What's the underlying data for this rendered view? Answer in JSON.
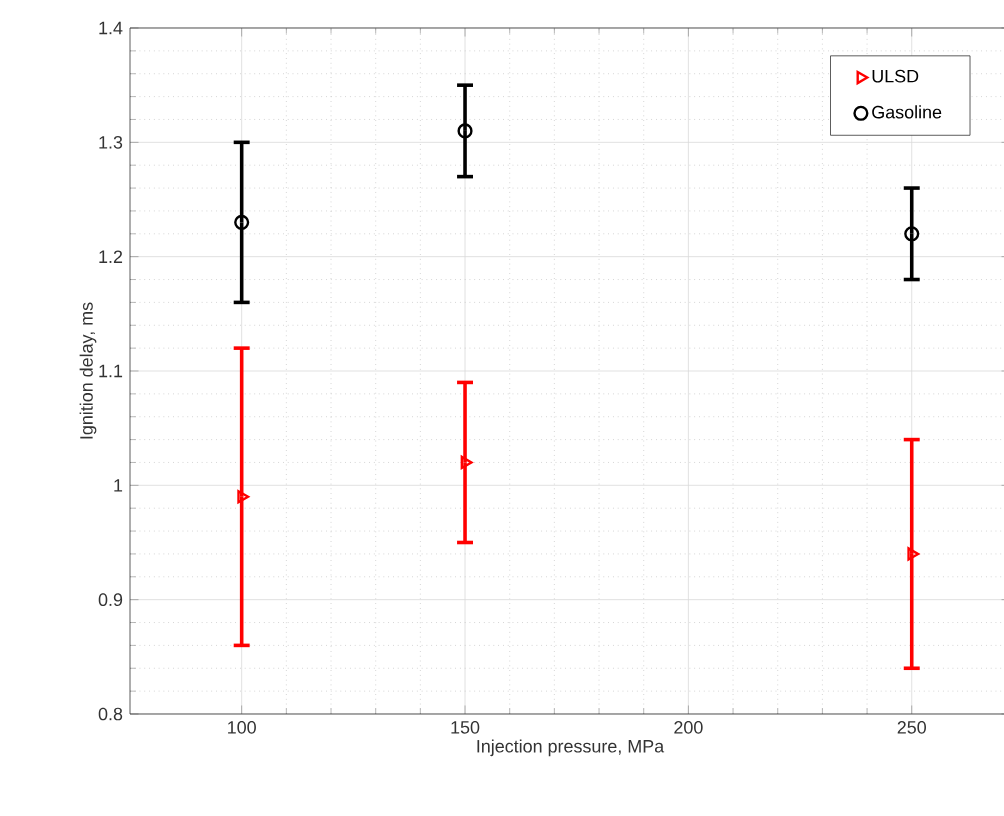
{
  "chart_data": {
    "type": "scatter",
    "xlabel": "Injection pressure, MPa",
    "ylabel": "Ignition delay, ms",
    "x": [
      100,
      150,
      250
    ],
    "series": [
      {
        "name": "ULSD",
        "color": "#ff0000",
        "marker": "triangle",
        "values": [
          0.99,
          1.02,
          0.94
        ],
        "errors": [
          [
            0.86,
            1.12
          ],
          [
            0.95,
            1.09
          ],
          [
            0.84,
            1.04
          ]
        ]
      },
      {
        "name": "Gasoline",
        "color": "#000000",
        "marker": "circle",
        "values": [
          1.23,
          1.31,
          1.22
        ],
        "errors": [
          [
            1.16,
            1.3
          ],
          [
            1.27,
            1.35
          ],
          [
            1.18,
            1.26
          ]
        ]
      }
    ],
    "xlim": [
      75,
      272
    ],
    "ylim": [
      0.8,
      1.4
    ],
    "xticks": [
      100,
      150,
      200,
      250
    ],
    "yticks": [
      0.8,
      0.9,
      1,
      1.1,
      1.2,
      1.3,
      1.4
    ],
    "grid": true,
    "legend": "top right"
  }
}
